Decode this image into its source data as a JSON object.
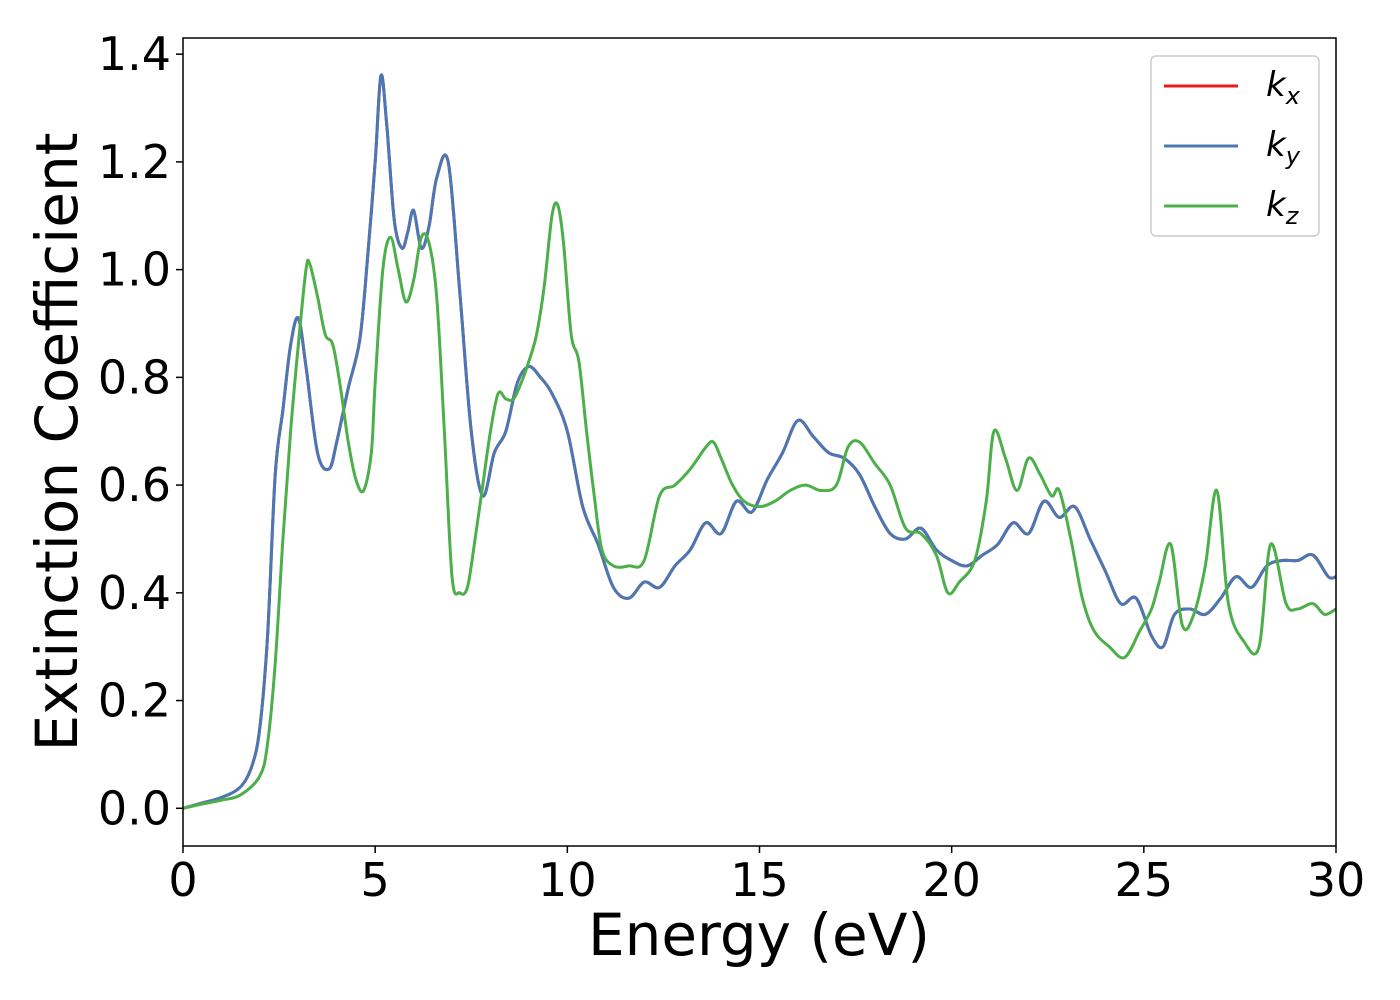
{
  "chart_data": {
    "type": "line",
    "xlabel": "Energy (eV)",
    "ylabel": "Extinction Coefficient",
    "xlim": [
      0,
      30
    ],
    "ylim": [
      -0.07,
      1.43
    ],
    "xticks": [
      "0",
      "5",
      "10",
      "15",
      "20",
      "25",
      "30"
    ],
    "yticks": [
      "0.0",
      "0.2",
      "0.4",
      "0.6",
      "0.8",
      "1.0",
      "1.2",
      "1.4"
    ],
    "grid": false,
    "legend_position": "top-right",
    "series": [
      {
        "name": "k",
        "sub": "x",
        "color": "#e41a1c",
        "x": [
          0,
          0.5,
          1,
          1.5,
          1.8,
          2,
          2.2,
          2.4,
          2.6,
          2.8,
          3,
          3.2,
          3.5,
          3.8,
          4,
          4.3,
          4.6,
          4.8,
          5,
          5.15,
          5.3,
          5.5,
          5.7,
          5.85,
          6,
          6.2,
          6.4,
          6.6,
          6.9,
          7.2,
          7.5,
          7.8,
          8.1,
          8.4,
          8.7,
          9,
          9.3,
          9.6,
          10,
          10.4,
          10.8,
          11.2,
          11.6,
          12,
          12.4,
          12.8,
          13.2,
          13.6,
          14,
          14.4,
          14.8,
          15.2,
          15.6,
          16,
          16.4,
          16.8,
          17.2,
          17.6,
          18,
          18.4,
          18.8,
          19.2,
          19.6,
          20,
          20.4,
          20.8,
          21.2,
          21.6,
          22,
          22.4,
          22.8,
          23.2,
          23.6,
          24,
          24.4,
          24.8,
          25.2,
          25.5,
          25.8,
          26.2,
          26.6,
          27,
          27.4,
          27.8,
          28.2,
          28.6,
          29,
          29.4,
          29.8,
          30
        ],
        "y": [
          0,
          0.01,
          0.02,
          0.04,
          0.08,
          0.15,
          0.32,
          0.62,
          0.74,
          0.86,
          0.91,
          0.82,
          0.66,
          0.63,
          0.68,
          0.78,
          0.87,
          1.02,
          1.2,
          1.36,
          1.27,
          1.09,
          1.04,
          1.07,
          1.11,
          1.04,
          1.08,
          1.17,
          1.2,
          0.96,
          0.7,
          0.58,
          0.66,
          0.7,
          0.79,
          0.82,
          0.8,
          0.77,
          0.7,
          0.56,
          0.49,
          0.41,
          0.39,
          0.42,
          0.41,
          0.45,
          0.48,
          0.53,
          0.51,
          0.57,
          0.55,
          0.61,
          0.66,
          0.72,
          0.69,
          0.66,
          0.65,
          0.62,
          0.56,
          0.51,
          0.5,
          0.52,
          0.48,
          0.46,
          0.45,
          0.47,
          0.49,
          0.53,
          0.51,
          0.57,
          0.54,
          0.56,
          0.5,
          0.44,
          0.38,
          0.39,
          0.32,
          0.3,
          0.36,
          0.37,
          0.36,
          0.39,
          0.43,
          0.41,
          0.45,
          0.46,
          0.46,
          0.47,
          0.43,
          0.43
        ]
      },
      {
        "name": "k",
        "sub": "y",
        "color": "#4a78b5",
        "x": [
          0,
          0.5,
          1,
          1.5,
          1.8,
          2,
          2.2,
          2.4,
          2.6,
          2.8,
          3,
          3.2,
          3.5,
          3.8,
          4,
          4.3,
          4.6,
          4.8,
          5,
          5.15,
          5.3,
          5.5,
          5.7,
          5.85,
          6,
          6.2,
          6.4,
          6.6,
          6.9,
          7.2,
          7.5,
          7.8,
          8.1,
          8.4,
          8.7,
          9,
          9.3,
          9.6,
          10,
          10.4,
          10.8,
          11.2,
          11.6,
          12,
          12.4,
          12.8,
          13.2,
          13.6,
          14,
          14.4,
          14.8,
          15.2,
          15.6,
          16,
          16.4,
          16.8,
          17.2,
          17.6,
          18,
          18.4,
          18.8,
          19.2,
          19.6,
          20,
          20.4,
          20.8,
          21.2,
          21.6,
          22,
          22.4,
          22.8,
          23.2,
          23.6,
          24,
          24.4,
          24.8,
          25.2,
          25.5,
          25.8,
          26.2,
          26.6,
          27,
          27.4,
          27.8,
          28.2,
          28.6,
          29,
          29.4,
          29.8,
          30
        ],
        "y": [
          0,
          0.01,
          0.02,
          0.04,
          0.08,
          0.15,
          0.32,
          0.62,
          0.74,
          0.86,
          0.91,
          0.82,
          0.66,
          0.63,
          0.68,
          0.78,
          0.87,
          1.02,
          1.2,
          1.36,
          1.27,
          1.09,
          1.04,
          1.07,
          1.11,
          1.04,
          1.08,
          1.17,
          1.2,
          0.96,
          0.7,
          0.58,
          0.66,
          0.7,
          0.79,
          0.82,
          0.8,
          0.77,
          0.7,
          0.56,
          0.49,
          0.41,
          0.39,
          0.42,
          0.41,
          0.45,
          0.48,
          0.53,
          0.51,
          0.57,
          0.55,
          0.61,
          0.66,
          0.72,
          0.69,
          0.66,
          0.65,
          0.62,
          0.56,
          0.51,
          0.5,
          0.52,
          0.48,
          0.46,
          0.45,
          0.47,
          0.49,
          0.53,
          0.51,
          0.57,
          0.54,
          0.56,
          0.5,
          0.44,
          0.38,
          0.39,
          0.32,
          0.3,
          0.36,
          0.37,
          0.36,
          0.39,
          0.43,
          0.41,
          0.45,
          0.46,
          0.46,
          0.47,
          0.43,
          0.43
        ]
      },
      {
        "name": "k",
        "sub": "z",
        "color": "#4daf4a",
        "x": [
          0,
          0.5,
          1,
          1.5,
          2,
          2.2,
          2.4,
          2.6,
          2.8,
          3,
          3.2,
          3.3,
          3.5,
          3.7,
          3.9,
          4.1,
          4.3,
          4.5,
          4.7,
          4.9,
          5,
          5.2,
          5.4,
          5.6,
          5.8,
          6,
          6.2,
          6.4,
          6.6,
          6.8,
          7,
          7.2,
          7.4,
          7.6,
          7.8,
          8,
          8.2,
          8.4,
          8.6,
          8.8,
          9,
          9.2,
          9.4,
          9.6,
          9.75,
          9.9,
          10.1,
          10.3,
          10.5,
          10.7,
          10.9,
          11.2,
          11.6,
          12,
          12.4,
          12.8,
          13.2,
          13.6,
          13.8,
          14,
          14.3,
          14.6,
          15,
          15.4,
          15.8,
          16.2,
          16.6,
          17,
          17.3,
          17.6,
          18,
          18.4,
          18.8,
          19.2,
          19.6,
          19.9,
          20.2,
          20.6,
          20.9,
          21.1,
          21.4,
          21.7,
          22,
          22.3,
          22.6,
          22.8,
          23.1,
          23.4,
          23.7,
          24.1,
          24.5,
          24.9,
          25.2,
          25.4,
          25.7,
          26,
          26.3,
          26.6,
          26.9,
          27.2,
          27.6,
          28,
          28.3,
          28.7,
          29,
          29.4,
          29.7,
          30
        ],
        "y": [
          0,
          0.008,
          0.015,
          0.025,
          0.06,
          0.12,
          0.27,
          0.5,
          0.7,
          0.86,
          1.0,
          1.01,
          0.95,
          0.88,
          0.86,
          0.78,
          0.68,
          0.61,
          0.59,
          0.66,
          0.79,
          1.0,
          1.06,
          1.0,
          0.94,
          0.98,
          1.06,
          1.05,
          0.95,
          0.7,
          0.43,
          0.4,
          0.41,
          0.5,
          0.6,
          0.7,
          0.77,
          0.76,
          0.76,
          0.79,
          0.83,
          0.88,
          0.97,
          1.1,
          1.12,
          1.05,
          0.88,
          0.83,
          0.7,
          0.58,
          0.48,
          0.45,
          0.45,
          0.46,
          0.58,
          0.6,
          0.63,
          0.67,
          0.68,
          0.65,
          0.6,
          0.57,
          0.56,
          0.57,
          0.59,
          0.6,
          0.59,
          0.6,
          0.67,
          0.68,
          0.64,
          0.6,
          0.52,
          0.51,
          0.47,
          0.4,
          0.42,
          0.46,
          0.57,
          0.7,
          0.65,
          0.59,
          0.65,
          0.62,
          0.58,
          0.59,
          0.5,
          0.39,
          0.33,
          0.3,
          0.28,
          0.33,
          0.37,
          0.42,
          0.49,
          0.34,
          0.36,
          0.45,
          0.59,
          0.38,
          0.31,
          0.3,
          0.49,
          0.38,
          0.37,
          0.38,
          0.36,
          0.37
        ]
      }
    ]
  }
}
